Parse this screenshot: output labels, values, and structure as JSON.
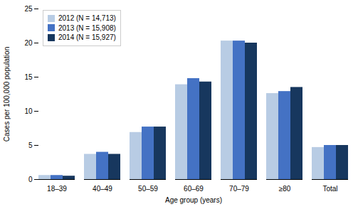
{
  "chart_data": {
    "type": "bar",
    "categories": [
      "18–39",
      "40–49",
      "50–59",
      "60–69",
      "70–79",
      "≥80",
      "Total"
    ],
    "series": [
      {
        "name": "2012 (N = 14,713)",
        "color": "#b8cce4",
        "values": [
          0.6,
          3.7,
          6.9,
          13.9,
          20.3,
          12.6,
          4.7
        ]
      },
      {
        "name": "2013 (N = 15,908)",
        "color": "#4472c4",
        "values": [
          0.6,
          4.0,
          7.7,
          14.8,
          20.3,
          12.9,
          5.0
        ]
      },
      {
        "name": "2014 (N = 15,927)",
        "color": "#17375e",
        "values": [
          0.5,
          3.7,
          7.7,
          14.3,
          20.0,
          13.5,
          5.0
        ]
      }
    ],
    "xlabel": "Age group (years)",
    "ylabel": "Cases per 100,000 population",
    "ylim": [
      0,
      25
    ],
    "yticks": [
      0,
      5,
      10,
      15,
      20,
      25
    ],
    "grid": false,
    "legend": "upper left"
  }
}
